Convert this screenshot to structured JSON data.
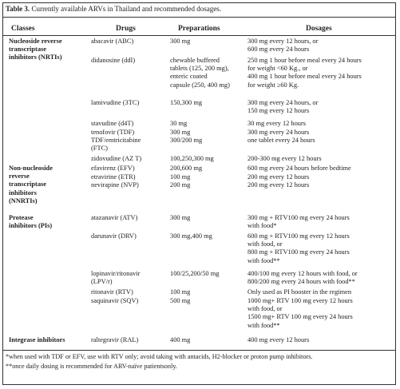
{
  "table": {
    "caption_label": "Table 3.",
    "caption_text": " Currently available ARVs in Thailand and recommended dosages.",
    "headers": [
      "Classes",
      "Drugs",
      "Preparations",
      "Dosages"
    ],
    "rows": [
      {
        "cls": [
          "Nucleoside reverse",
          "transcriptase",
          "inhibitors (NRTIs)"
        ],
        "drug": [
          "abacavir (ABC)"
        ],
        "prep": [
          "300 mg"
        ],
        "dose": [
          "300 mg every 12 hours, or",
          "600 mg every 24 hours"
        ]
      },
      {
        "drug": [
          "didanosine (ddI)"
        ],
        "prep": [
          "chewable buffered",
          "tablets (125, 200 mg),",
          "enteric coated",
          "capsule (250, 400 mg)"
        ],
        "dose": [
          "250 mg 1 hour before meal every 24 hours",
          "for weight <60 Kg., or",
          "400 mg 1 hour before meal every 24 hours",
          "for weight ≥60 Kg."
        ]
      },
      {
        "drug": [
          "lamivudine (3TC)"
        ],
        "prep": [
          "150,300 mg"
        ],
        "dose": [
          "300 mg every 24 hours, or",
          "150 mg every 12 hours"
        ]
      },
      {
        "drug": [
          "stavudine (d4T)"
        ],
        "prep": [
          "30 mg"
        ],
        "dose": [
          "30 mg every 12 hours"
        ]
      },
      {
        "drug": [
          "tenofovir (TDF)"
        ],
        "prep": [
          "300 mg"
        ],
        "dose": [
          "300 mg every 24 hours"
        ]
      },
      {
        "drug": [
          "TDF/emtricitabine",
          "(FTC)"
        ],
        "prep": [
          "300/200 mg"
        ],
        "dose": [
          "one tablet every 24 hours"
        ]
      },
      {
        "drug": [
          "zidovudine (AZ T)"
        ],
        "prep": [
          "100,250,300 mg"
        ],
        "dose": [
          "200-300 mg every 12 hours"
        ]
      },
      {
        "cls": [
          "Non-nucleoside",
          "reverse",
          "transcriptase",
          "inhibitors",
          "(NNRTIs)"
        ],
        "drug": [
          "efavirenz (EFV)"
        ],
        "prep": [
          "200,600 mg"
        ],
        "dose": [
          "600 mg every 24 hours before bedtime"
        ]
      },
      {
        "drug": [
          "etravirine (ETR)"
        ],
        "prep": [
          "100 mg"
        ],
        "dose": [
          "200 mg every 12 hours"
        ]
      },
      {
        "drug": [
          "nevirapine (NVP)"
        ],
        "prep": [
          "200 mg"
        ],
        "dose": [
          "200 mg every 12 hours"
        ]
      },
      {
        "cls": [
          "Protease",
          "inhibitors (PIs)"
        ],
        "drug": [
          "atazanavir (ATV)"
        ],
        "prep": [
          "300 mg"
        ],
        "dose": [
          "300 mg + RTV100 mg every 24 hours",
          "with food*"
        ]
      },
      {
        "drug": [
          "darunavir (DRV)"
        ],
        "prep": [
          "300 mg,400 mg"
        ],
        "dose": [
          "600 mg + RTV100 mg every 12 hours",
          "with food, or",
          "800 mg + RTV100 mg every 24 hours",
          "with food**"
        ]
      },
      {
        "drug": [
          "lopinavir/ritonavir",
          "(LPV/r)"
        ],
        "prep": [
          "100/25,200/50 mg"
        ],
        "dose": [
          "400/100 mg every 12 hours with food, or",
          "800/200 mg every 24 hours with food**"
        ]
      },
      {
        "drug": [
          "ritonavir (RTV)"
        ],
        "prep": [
          "100 mg"
        ],
        "dose": [
          "Only used as PI booster in the regimen"
        ]
      },
      {
        "drug": [
          "saquinavir (SQV)"
        ],
        "prep": [
          "500 mg"
        ],
        "dose": [
          "1000 mg+ RTV 100 mg every 12 hours",
          "with food, or",
          "1500 mg+ RTV 100 mg every 24 hours",
          "with food**"
        ]
      },
      {
        "cls": [
          "Integrase inhibitors"
        ],
        "drug": [
          "raltegravir (RAL)"
        ],
        "prep": [
          "400 mg"
        ],
        "dose": [
          "400 mg every 12 hours"
        ]
      }
    ],
    "footnotes": [
      "*when used with TDF or EFV, use with RTV only; avoid taking with antacids, H2-blocker or proton pump inhibitors.",
      "**once daily dosing is recommended for ARV-naïve patientsonly."
    ]
  }
}
